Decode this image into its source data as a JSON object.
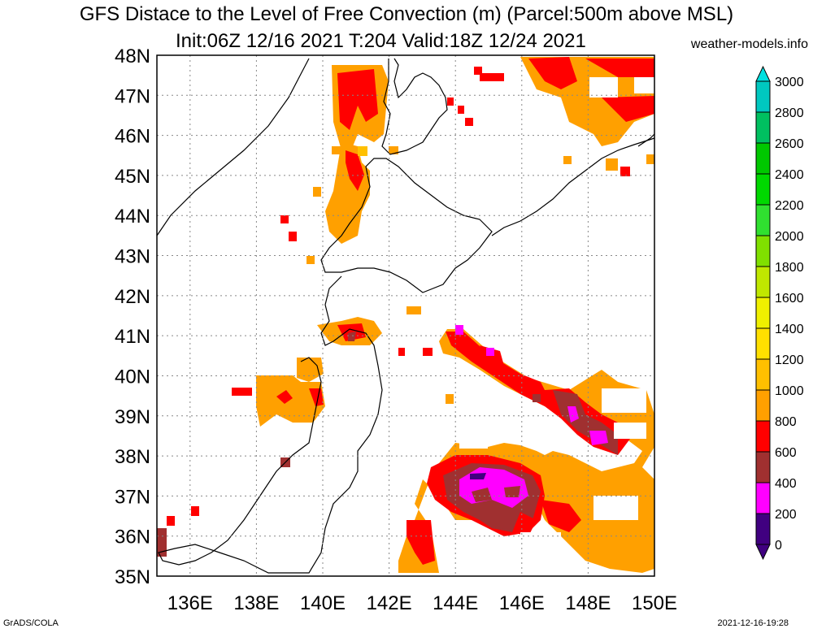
{
  "title": {
    "line1": "GFS Distace to the Level of Free Convection (m) (Parcel:500m above MSL)",
    "line2": "Init:06Z 12/16 2021 T:204 Valid:18Z 12/24 2021",
    "site": "weather-models.info"
  },
  "footer": {
    "left": "GrADS/COLA",
    "right": "2021-12-16-19:28"
  },
  "map": {
    "lat_labels": [
      "48N",
      "47N",
      "46N",
      "45N",
      "44N",
      "43N",
      "42N",
      "41N",
      "40N",
      "39N",
      "38N",
      "37N",
      "36N",
      "35N"
    ],
    "lon_labels": [
      "136E",
      "138E",
      "140E",
      "142E",
      "144E",
      "146E",
      "148E",
      "150E"
    ],
    "lat_range": [
      35,
      48
    ],
    "lon_range": [
      135,
      150
    ]
  },
  "legend": {
    "labels": [
      "3000",
      "2800",
      "2600",
      "2400",
      "2200",
      "2000",
      "1800",
      "1600",
      "1400",
      "1200",
      "1000",
      "800",
      "600",
      "400",
      "200",
      "0"
    ],
    "colors": [
      "#00e0e0",
      "#00c8c0",
      "#00c060",
      "#00c800",
      "#00d800",
      "#30e030",
      "#80e000",
      "#c0e800",
      "#f0f000",
      "#ffe000",
      "#ffc000",
      "#ffa000",
      "#ff0000",
      "#a03030",
      "#ff00ff",
      "#400080"
    ]
  }
}
